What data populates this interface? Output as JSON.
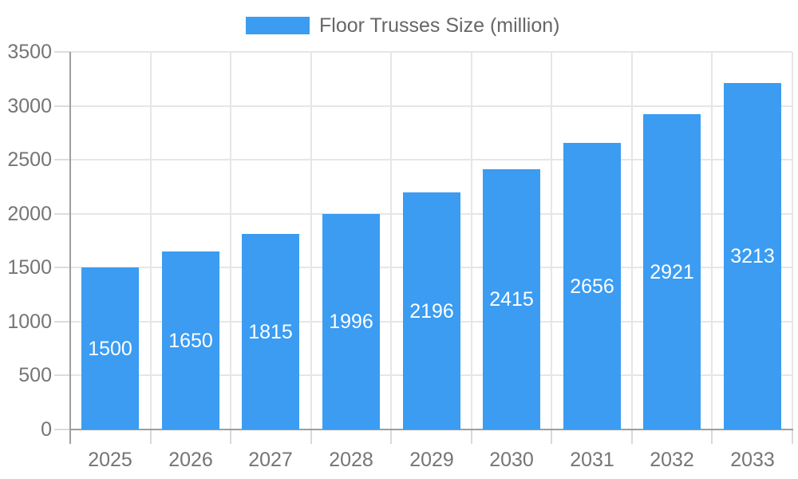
{
  "chart_data": {
    "type": "bar",
    "title": "Floor Trusses Size (million)",
    "legend": [
      "Floor Trusses Size (million)"
    ],
    "legend_position": "top-center",
    "categories": [
      "2025",
      "2026",
      "2027",
      "2028",
      "2029",
      "2030",
      "2031",
      "2032",
      "2033"
    ],
    "values": [
      1500,
      1650,
      1815,
      1996,
      2196,
      2415,
      2656,
      2921,
      3213
    ],
    "xlabel": "",
    "ylabel": "",
    "ylim": [
      0,
      3500
    ],
    "yticks": [
      0,
      500,
      1000,
      1500,
      2000,
      2500,
      3000,
      3500
    ],
    "grid": true,
    "data_label_position": "inside-center"
  },
  "colors": {
    "bar": "#3B9CF2",
    "grid": "#E6E6E6",
    "axis": "#9E9E9E",
    "tick_text": "#757575",
    "legend_text": "#666666",
    "data_label_text": "#FFFFFF",
    "background": "#FFFFFF"
  }
}
